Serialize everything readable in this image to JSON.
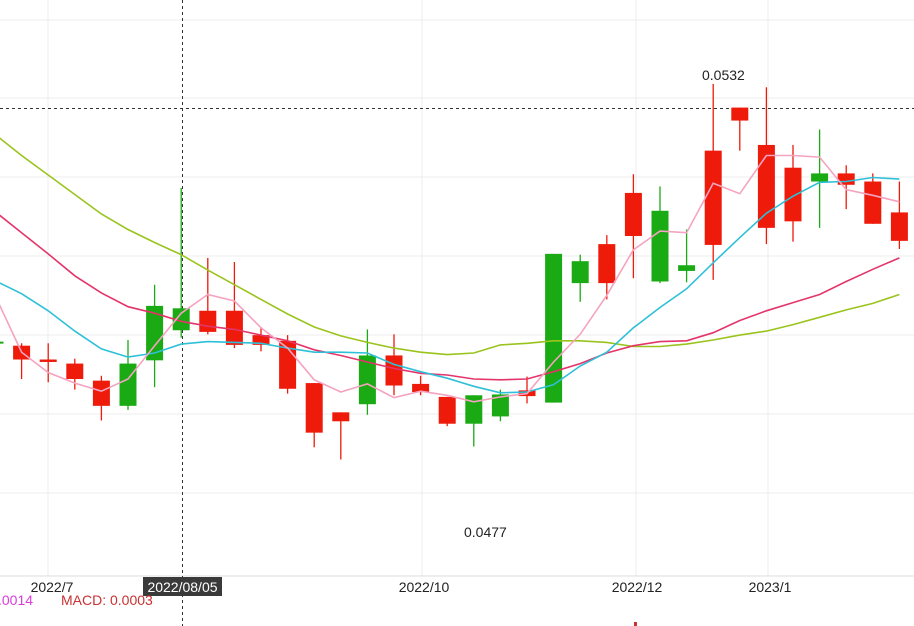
{
  "chart_data": {
    "type": "candlestick",
    "x_tick_labels": [
      "2022/7",
      "2022/10",
      "2022/12",
      "2023/1"
    ],
    "crosshair": {
      "x_label": "2022/08/05",
      "y_value": 0.0529
    },
    "high_label": "0.0532",
    "low_label": "0.0477",
    "macd_text": {
      "partial_value": ".0014",
      "macd_label": "MACD: 0.0003"
    },
    "colors": {
      "up": "#1aaa14",
      "down": "#ee1a0a",
      "ma5": "#f4a3c0",
      "ma10": "#2ec0d8",
      "ma20": "#e4356a",
      "ma30": "#9ac41c",
      "grid": "#ececec",
      "dif_text": "#dc3cdc",
      "macd_text": "#c83232"
    },
    "candles": [
      {
        "open": 0.05001,
        "close": 0.05003,
        "high": 0.05004,
        "low": 0.05
      },
      {
        "open": 0.04998,
        "close": 0.04981,
        "high": 0.05001,
        "low": 0.04957
      },
      {
        "open": 0.04981,
        "close": 0.04978,
        "high": 0.05001,
        "low": 0.04953
      },
      {
        "open": 0.04976,
        "close": 0.04957,
        "high": 0.04982,
        "low": 0.04944
      },
      {
        "open": 0.04955,
        "close": 0.04924,
        "high": 0.04961,
        "low": 0.04906
      },
      {
        "open": 0.04924,
        "close": 0.04976,
        "high": 0.05005,
        "low": 0.04919
      },
      {
        "open": 0.0498,
        "close": 0.05047,
        "high": 0.05073,
        "low": 0.04947
      },
      {
        "open": 0.05017,
        "close": 0.05044,
        "high": 0.05192,
        "low": 0.05008
      },
      {
        "open": 0.05041,
        "close": 0.05015,
        "high": 0.05106,
        "low": 0.05012
      },
      {
        "open": 0.05041,
        "close": 0.04999,
        "high": 0.05101,
        "low": 0.04995
      },
      {
        "open": 0.05011,
        "close": 0.04999,
        "high": 0.05021,
        "low": 0.04991
      },
      {
        "open": 0.05004,
        "close": 0.04945,
        "high": 0.05011,
        "low": 0.04939
      },
      {
        "open": 0.04952,
        "close": 0.04891,
        "high": 0.04952,
        "low": 0.04873
      },
      {
        "open": 0.04916,
        "close": 0.04905,
        "high": 0.04916,
        "low": 0.04858
      },
      {
        "open": 0.04926,
        "close": 0.04986,
        "high": 0.05018,
        "low": 0.04913
      },
      {
        "open": 0.04986,
        "close": 0.04949,
        "high": 0.05012,
        "low": 0.04937
      },
      {
        "open": 0.04951,
        "close": 0.04941,
        "high": 0.04961,
        "low": 0.04937
      },
      {
        "open": 0.04935,
        "close": 0.04902,
        "high": 0.04935,
        "low": 0.04899
      },
      {
        "open": 0.04902,
        "close": 0.04937,
        "high": 0.04937,
        "low": 0.04874
      },
      {
        "open": 0.04911,
        "close": 0.04938,
        "high": 0.04944,
        "low": 0.04905
      },
      {
        "open": 0.04943,
        "close": 0.04936,
        "high": 0.0496,
        "low": 0.04927
      },
      {
        "open": 0.04928,
        "close": 0.05111,
        "high": 0.05111,
        "low": 0.04928
      },
      {
        "open": 0.05075,
        "close": 0.05102,
        "high": 0.0511,
        "low": 0.05052
      },
      {
        "open": 0.05123,
        "close": 0.05075,
        "high": 0.05134,
        "low": 0.05055
      },
      {
        "open": 0.05186,
        "close": 0.05133,
        "high": 0.05209,
        "low": 0.05081
      },
      {
        "open": 0.05077,
        "close": 0.05164,
        "high": 0.05194,
        "low": 0.05075
      },
      {
        "open": 0.0509,
        "close": 0.05097,
        "high": 0.05141,
        "low": 0.05076
      },
      {
        "open": 0.05238,
        "close": 0.05122,
        "high": 0.0532,
        "low": 0.05079
      },
      {
        "open": 0.05291,
        "close": 0.05275,
        "high": 0.05291,
        "low": 0.05238
      },
      {
        "open": 0.05245,
        "close": 0.05143,
        "high": 0.05316,
        "low": 0.05123
      },
      {
        "open": 0.05217,
        "close": 0.05151,
        "high": 0.05245,
        "low": 0.05126
      },
      {
        "open": 0.052,
        "close": 0.0521,
        "high": 0.05264,
        "low": 0.05143
      },
      {
        "open": 0.0521,
        "close": 0.05196,
        "high": 0.0522,
        "low": 0.05166
      },
      {
        "open": 0.052,
        "close": 0.05148,
        "high": 0.0521,
        "low": 0.05148
      },
      {
        "open": 0.05162,
        "close": 0.05127,
        "high": 0.052,
        "low": 0.05117
      }
    ],
    "ma": {
      "ma5": [
        0.0506,
        0.0499,
        0.04965,
        0.04952,
        0.04942,
        0.04957,
        0.04998,
        0.05038,
        0.05061,
        0.05053,
        0.0502,
        0.04995,
        0.04956,
        0.04941,
        0.04951,
        0.04934,
        0.04942,
        0.04937,
        0.04929,
        0.04935,
        0.04939,
        0.04978,
        0.05012,
        0.0506,
        0.05116,
        0.05139,
        0.05137,
        0.05198,
        0.05185,
        0.05232,
        0.05232,
        0.0523,
        0.0519,
        0.05183,
        0.05175
      ],
      "ma10": [
        0.05078,
        0.05062,
        0.05041,
        0.05016,
        0.04994,
        0.04984,
        0.04989,
        0.05,
        0.05003,
        0.05002,
        0.05001,
        0.04995,
        0.0499,
        0.0499,
        0.04989,
        0.04975,
        0.04966,
        0.04958,
        0.04948,
        0.0494,
        0.04941,
        0.0495,
        0.04973,
        0.0499,
        0.0502,
        0.05045,
        0.05068,
        0.051,
        0.05131,
        0.05161,
        0.05182,
        0.05199,
        0.052,
        0.05205,
        0.05203
      ],
      "ma20": [
        0.05163,
        0.05137,
        0.05111,
        0.05084,
        0.05063,
        0.05046,
        0.05038,
        0.05028,
        0.05022,
        0.05018,
        0.05011,
        0.05004,
        0.04993,
        0.04986,
        0.04978,
        0.0497,
        0.04964,
        0.04962,
        0.04957,
        0.04956,
        0.04957,
        0.04966,
        0.04976,
        0.04989,
        0.04998,
        0.05003,
        0.05004,
        0.05014,
        0.05029,
        0.05041,
        0.05051,
        0.05061,
        0.05077,
        0.05092,
        0.05106
      ],
      "ma30": [
        0.05258,
        0.05232,
        0.05208,
        0.05184,
        0.0516,
        0.05141,
        0.05125,
        0.0511,
        0.05091,
        0.05073,
        0.05055,
        0.05037,
        0.05021,
        0.0501,
        0.05002,
        0.04995,
        0.0499,
        0.04987,
        0.04989,
        0.04999,
        0.05001,
        0.05004,
        0.05004,
        0.05002,
        0.04997,
        0.04997,
        0.05,
        0.05005,
        0.05011,
        0.05016,
        0.05024,
        0.05033,
        0.05042,
        0.0505,
        0.05061
      ]
    }
  }
}
